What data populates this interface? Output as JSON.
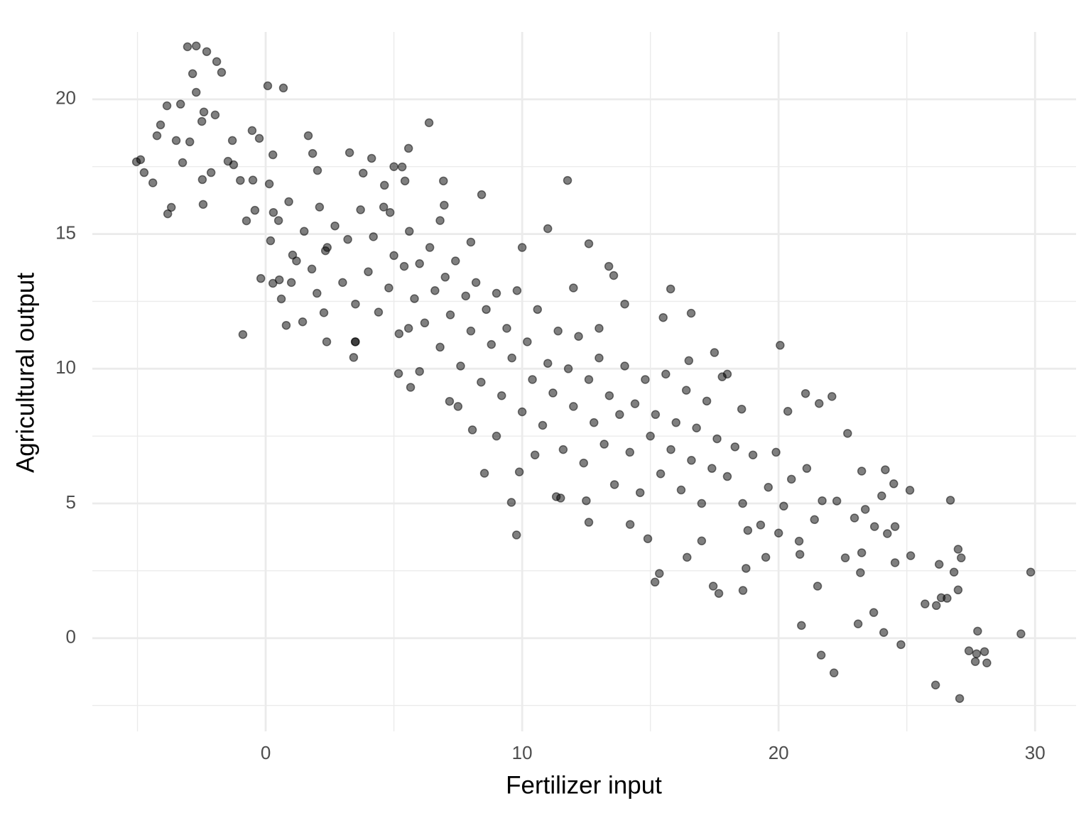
{
  "chart_data": {
    "type": "scatter",
    "x_label": "Fertilizer input",
    "y_label": "Agricultural output",
    "color": "#000000",
    "alpha": 0.5,
    "grid": true,
    "xlim": [
      -6.76,
      31.6
    ],
    "ylim": [
      -3.46,
      22.5
    ],
    "xticks": [
      0,
      10,
      20,
      30
    ],
    "yticks": [
      0,
      5,
      10,
      15,
      20
    ],
    "xminor": [
      -5,
      5,
      15,
      25
    ],
    "yminor": [
      -2.5,
      2.5,
      7.5,
      12.5,
      17.5
    ],
    "x": [
      -5.04,
      -4.88,
      -4.74,
      -4.4,
      -4.24,
      -4.1,
      -3.85,
      -3.82,
      -3.68,
      -3.49,
      -3.32,
      -3.24,
      -3.05,
      -2.96,
      -2.85,
      -2.71,
      -2.71,
      -2.49,
      -2.47,
      -2.41,
      -2.44,
      -2.3,
      -2.13,
      -1.97,
      -1.91,
      -1.72,
      -1.47,
      -1.3,
      -1.25,
      -0.89,
      -0.99,
      -0.75,
      -0.53,
      -0.25,
      -0.42,
      0.08,
      0.69,
      0.28,
      0.14,
      0.19,
      -0.19,
      0.28,
      0.53,
      0.61,
      0.8,
      1.05,
      1.44,
      1.66,
      1.83,
      2.02,
      2.38,
      2.27,
      2.33,
      3.27,
      3.43,
      3.49,
      4.13,
      3.8,
      4.63,
      4.85,
      5.43,
      5.57,
      5.32,
      6.37,
      5.65,
      5.18,
      5.57,
      6.93,
      6.96,
      7.17,
      8.42,
      8.53,
      8.06,
      9.58,
      9.78,
      9.89,
      11.77,
      11.33,
      12.6,
      12.6,
      13.38,
      13.57,
      14.21,
      14.9,
      15.18,
      15.35,
      15.79,
      16.43,
      16.59,
      17.0,
      17.45,
      17.67,
      18.61,
      18.73,
      18.56,
      20.06,
      20.36,
      20.89,
      20.83,
      21.05,
      21.58,
      21.66,
      21.52,
      22.08,
      22.16,
      22.27,
      22.69,
      22.6,
      23.1,
      23.24,
      23.19,
      22.96,
      23.24,
      23.38,
      23.71,
      23.74,
      24.1,
      24.02,
      24.24,
      24.16,
      24.49,
      24.54,
      24.54,
      24.77,
      25.12,
      25.15,
      25.71,
      26.15,
      26.12,
      26.26,
      26.34,
      26.57,
      26.7,
      26.84,
      27.0,
      27.0,
      27.12,
      27.06,
      27.42,
      27.72,
      27.67,
      27.76,
      28.03,
      28.12,
      29.45,
      29.83,
      0.5,
      0.9,
      1.2,
      1.5,
      1.8,
      2.1,
      2.4,
      2.7,
      3.0,
      3.2,
      3.5,
      3.7,
      4.0,
      4.2,
      4.4,
      4.6,
      4.8,
      5.0,
      5.2,
      5.4,
      5.6,
      5.8,
      6.0,
      6.2,
      6.4,
      6.6,
      6.8,
      7.0,
      7.2,
      7.4,
      7.6,
      7.8,
      8.0,
      8.2,
      8.4,
      8.6,
      8.8,
      9.0,
      9.2,
      9.4,
      9.6,
      9.8,
      10.0,
      10.2,
      10.4,
      10.6,
      10.8,
      11.0,
      11.2,
      11.4,
      11.6,
      11.8,
      12.0,
      12.2,
      12.4,
      12.6,
      12.8,
      13.0,
      13.2,
      13.4,
      13.6,
      13.8,
      14.0,
      14.2,
      14.4,
      14.6,
      14.8,
      15.0,
      15.2,
      15.4,
      15.6,
      15.8,
      16.0,
      16.2,
      16.4,
      16.6,
      16.8,
      17.0,
      17.2,
      17.4,
      17.6,
      17.8,
      18.0,
      18.3,
      18.6,
      19.0,
      19.3,
      19.6,
      19.9,
      20.2,
      20.5,
      20.8,
      21.1,
      21.4,
      21.7,
      18.8,
      19.5,
      20.0,
      9.0,
      10.5,
      11.5,
      12.5,
      7.5,
      6.0,
      3.5,
      8.0,
      10.0,
      11.0,
      12.0,
      14.0,
      15.5,
      13.0,
      6.8,
      5.0,
      2.0,
      1.0,
      0.3,
      -0.5,
      16.5,
      17.5,
      18.0
    ],
    "y": [
      17.68,
      17.76,
      17.28,
      16.9,
      18.65,
      19.05,
      19.76,
      15.75,
      15.99,
      18.47,
      19.82,
      17.65,
      21.95,
      18.42,
      20.95,
      21.98,
      20.26,
      19.18,
      17.02,
      19.53,
      16.1,
      21.77,
      17.28,
      19.42,
      21.4,
      21.0,
      17.7,
      18.47,
      17.57,
      11.27,
      16.99,
      15.49,
      18.84,
      18.55,
      15.88,
      20.5,
      20.42,
      17.94,
      16.86,
      14.75,
      13.35,
      13.17,
      13.3,
      12.59,
      11.61,
      14.22,
      11.74,
      18.65,
      17.99,
      17.36,
      11.0,
      12.08,
      14.38,
      18.02,
      10.42,
      11.0,
      17.81,
      17.26,
      16.81,
      15.8,
      16.97,
      18.18,
      17.49,
      19.13,
      9.31,
      9.82,
      11.5,
      16.97,
      16.07,
      8.79,
      16.46,
      6.12,
      7.73,
      5.04,
      3.83,
      6.17,
      16.99,
      5.25,
      14.64,
      4.3,
      13.8,
      13.46,
      4.22,
      3.69,
      2.08,
      2.4,
      12.96,
      3.0,
      12.06,
      3.61,
      1.93,
      1.66,
      1.77,
      2.59,
      8.5,
      10.87,
      8.42,
      0.47,
      3.11,
      9.08,
      8.71,
      -0.63,
      1.93,
      8.97,
      -1.29,
      5.09,
      7.6,
      2.98,
      0.53,
      3.17,
      2.43,
      4.46,
      6.2,
      4.78,
      0.95,
      4.14,
      0.21,
      5.28,
      3.88,
      6.25,
      5.73,
      2.8,
      4.14,
      -0.24,
      5.49,
      3.06,
      1.27,
      1.21,
      -1.74,
      2.74,
      1.5,
      1.48,
      5.12,
      2.45,
      3.3,
      1.79,
      2.98,
      -2.24,
      -0.47,
      -0.58,
      -0.87,
      0.26,
      -0.5,
      -0.92,
      0.16,
      2.45,
      15.5,
      16.2,
      14.0,
      15.1,
      13.7,
      16.0,
      14.5,
      15.3,
      13.2,
      14.8,
      12.4,
      15.9,
      13.6,
      14.9,
      12.1,
      16.0,
      13.0,
      14.2,
      11.3,
      13.8,
      15.1,
      12.6,
      13.9,
      11.7,
      14.5,
      12.9,
      10.8,
      13.4,
      12.0,
      14.0,
      10.1,
      12.7,
      11.4,
      13.2,
      9.5,
      12.2,
      10.9,
      12.8,
      9.0,
      11.5,
      10.4,
      12.9,
      8.4,
      11.0,
      9.6,
      12.2,
      7.9,
      10.2,
      9.1,
      11.4,
      7.0,
      10.0,
      8.6,
      11.2,
      6.5,
      9.6,
      8.0,
      10.4,
      7.2,
      9.0,
      5.7,
      8.3,
      10.1,
      6.9,
      8.7,
      5.4,
      9.6,
      7.5,
      8.3,
      6.1,
      9.8,
      7.0,
      8.0,
      5.5,
      9.2,
      6.6,
      7.8,
      5.0,
      8.8,
      6.3,
      7.4,
      9.7,
      6.0,
      7.1,
      5.0,
      6.8,
      4.2,
      5.6,
      6.9,
      4.9,
      5.9,
      3.6,
      6.3,
      4.4,
      5.1,
      4.0,
      3.0,
      3.9,
      7.5,
      6.8,
      5.2,
      5.1,
      8.6,
      9.9,
      11.0,
      14.7,
      14.5,
      15.2,
      13.0,
      12.4,
      11.9,
      11.5,
      15.5,
      17.5,
      12.8,
      13.2,
      15.8,
      17.0,
      10.3,
      10.6,
      9.8
    ]
  }
}
